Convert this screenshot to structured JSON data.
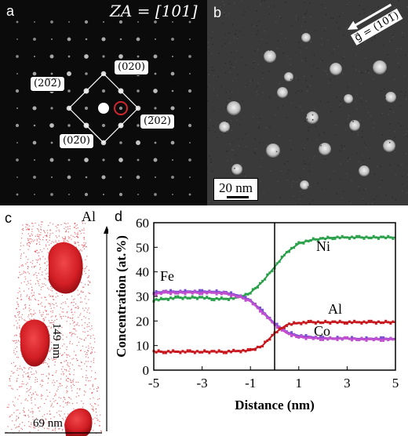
{
  "panels": {
    "a": {
      "label": "a",
      "zone_axis": "ZA = [101]",
      "spots": [
        "(020)",
        "(20̅2̅)",
        "(2̅02)",
        "(02̅0)"
      ]
    },
    "b": {
      "label": "b",
      "g_vector": "g⃗ = (101̅)",
      "scale_bar": "20 nm"
    },
    "c": {
      "label": "c",
      "element": "Al",
      "height_label": "149 nm",
      "width_label": "69 nm"
    },
    "d": {
      "label": "d"
    }
  },
  "colors": {
    "ni": "#2aa04a",
    "fe": "#7a4fd0",
    "co": "#c24fd0",
    "al": "#c8161d",
    "particle": "#e0202a"
  },
  "chart_data": {
    "type": "line",
    "xlabel": "Distance (nm)",
    "ylabel": "Concentration (at.%)",
    "xlim": [
      -5,
      5
    ],
    "ylim": [
      0,
      60
    ],
    "xticks": [
      "-5",
      "-3",
      "-1",
      "1",
      "3",
      "5"
    ],
    "yticks": [
      "0",
      "10",
      "20",
      "30",
      "40",
      "50",
      "60"
    ],
    "interface_x": 0,
    "x": [
      -5,
      -4.5,
      -4,
      -3.5,
      -3,
      -2.5,
      -2,
      -1.5,
      -1,
      -0.5,
      0,
      0.5,
      1,
      1.5,
      2,
      2.5,
      3,
      3.5,
      4,
      4.5,
      5
    ],
    "series": [
      {
        "name": "Ni",
        "color_key": "ni",
        "values": [
          28.5,
          29,
          29.5,
          29.5,
          29.5,
          29,
          29,
          29.5,
          31.5,
          36,
          42,
          48,
          51.5,
          53,
          53.5,
          54,
          54,
          54,
          54,
          54,
          54
        ]
      },
      {
        "name": "Fe",
        "color_key": "fe",
        "values": [
          31.5,
          32,
          32,
          32,
          32,
          32,
          31.5,
          30.5,
          28.5,
          24,
          19,
          15.5,
          14,
          13.5,
          13,
          13,
          13,
          12.8,
          12.8,
          12.8,
          12.8
        ]
      },
      {
        "name": "Co",
        "color_key": "co",
        "values": [
          31,
          31.5,
          31.5,
          31.5,
          31.5,
          31.5,
          31,
          30,
          28,
          23.5,
          18.5,
          15,
          13.5,
          13,
          12.8,
          12.8,
          12.8,
          12.5,
          12.5,
          12.5,
          12.5
        ]
      },
      {
        "name": "Al",
        "color_key": "al",
        "values": [
          7.5,
          7.5,
          7.5,
          7.5,
          7.5,
          7.5,
          7.5,
          7.8,
          8,
          10,
          15,
          18.5,
          19.2,
          19.5,
          19.5,
          19.5,
          19.5,
          19.5,
          19.5,
          19.5,
          19.5
        ]
      }
    ],
    "annotations": [
      "Ni",
      "Fe",
      "Al",
      "Co"
    ]
  }
}
